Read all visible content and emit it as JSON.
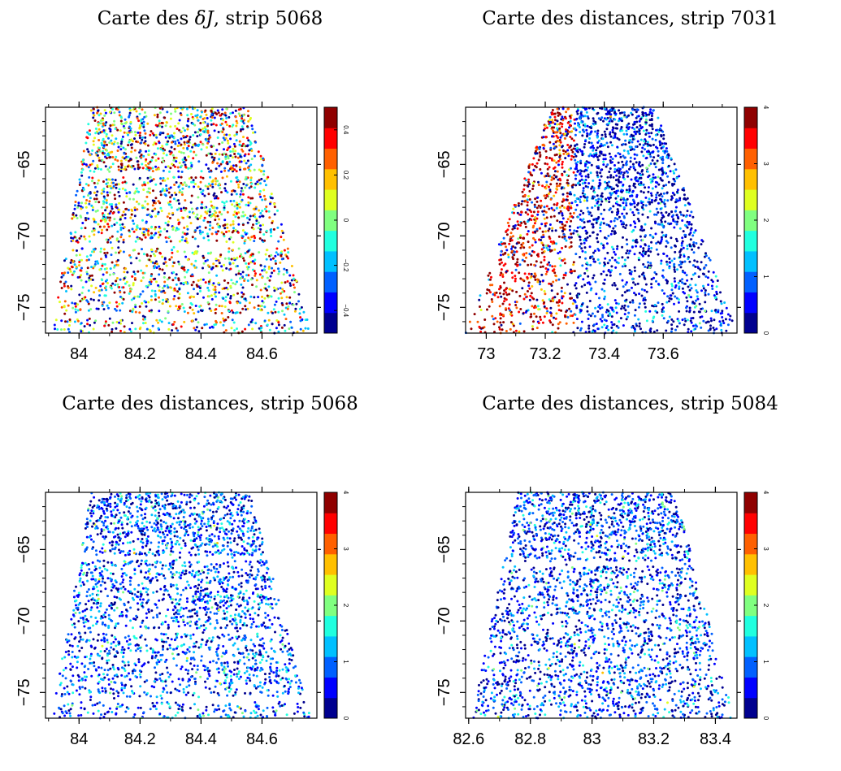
{
  "colormap": [
    "#00008f",
    "#0000ff",
    "#0060ff",
    "#00c0ff",
    "#20ffdf",
    "#80ff80",
    "#dfff20",
    "#ffc000",
    "#ff6000",
    "#ff0000",
    "#8f0000"
  ],
  "chart_data": [
    {
      "type": "scatter",
      "title_prefix": "Carte des ",
      "title_math": "δJ",
      "title_suffix": ", strip 5068",
      "xlabel": "",
      "ylabel": "",
      "xlim": [
        83.89,
        84.78
      ],
      "ylim": [
        -76.8,
        -61
      ],
      "xticks": [
        84,
        84.2,
        84.4,
        84.6
      ],
      "xtick_labels": [
        "84",
        "84.2",
        "84.4",
        "84.6"
      ],
      "yticks": [
        -65,
        -70,
        -75
      ],
      "ytick_labels": [
        "−65",
        "−70",
        "−75"
      ],
      "colorbar": {
        "min": -0.5,
        "max": 0.5,
        "ticks": [
          -0.4,
          -0.2,
          0,
          0.2,
          0.4
        ],
        "tick_labels": [
          "−0.4",
          "−0.2",
          "0",
          "0.2",
          "0.4"
        ]
      },
      "footprint": {
        "top": [
          84.04,
          84.56
        ],
        "bottom": [
          83.91,
          84.76
        ]
      },
      "value_dist": {
        "mean": 0.0,
        "spread": 0.35
      },
      "gaps_y": [
        -65.7,
        -70.7,
        -75.6
      ],
      "points_approx": 2600
    },
    {
      "type": "scatter",
      "title_prefix": "Carte des distances, strip 7031",
      "title_math": "",
      "title_suffix": "",
      "xlabel": "",
      "ylabel": "",
      "xlim": [
        72.93,
        73.85
      ],
      "ylim": [
        -76.8,
        -61
      ],
      "xticks": [
        73,
        73.2,
        73.4,
        73.6
      ],
      "xtick_labels": [
        "73",
        "73.2",
        "73.4",
        "73.6"
      ],
      "yticks": [
        -65,
        -70,
        -75
      ],
      "ytick_labels": [
        "−65",
        "−70",
        "−75"
      ],
      "colorbar": {
        "min": 0,
        "max": 4,
        "ticks": [
          0,
          1,
          2,
          3,
          4
        ],
        "tick_labels": [
          "0",
          "1",
          "2",
          "3",
          "4"
        ]
      },
      "footprint": {
        "top": [
          73.22,
          73.57
        ],
        "bottom": [
          72.93,
          73.85
        ]
      },
      "value_dist": {
        "mean": 0.5,
        "spread": 0.6,
        "hot_below_x": 73.3,
        "hot_mean": 3.5
      },
      "gaps_y": [],
      "points_approx": 2600
    },
    {
      "type": "scatter",
      "title_prefix": "Carte des distances, strip 5068",
      "title_math": "",
      "title_suffix": "",
      "xlabel": "",
      "ylabel": "",
      "xlim": [
        83.89,
        84.78
      ],
      "ylim": [
        -76.8,
        -61
      ],
      "xticks": [
        84,
        84.2,
        84.4,
        84.6
      ],
      "xtick_labels": [
        "84",
        "84.2",
        "84.4",
        "84.6"
      ],
      "yticks": [
        -65,
        -70,
        -75
      ],
      "ytick_labels": [
        "−65",
        "−70",
        "−75"
      ],
      "colorbar": {
        "min": 0,
        "max": 4,
        "ticks": [
          0,
          1,
          2,
          3,
          4
        ],
        "tick_labels": [
          "0",
          "1",
          "2",
          "3",
          "4"
        ]
      },
      "footprint": {
        "top": [
          84.04,
          84.56
        ],
        "bottom": [
          83.91,
          84.76
        ]
      },
      "value_dist": {
        "mean": 0.8,
        "spread": 0.55
      },
      "gaps_y": [
        -65.6,
        -70.7,
        -75.5
      ],
      "points_approx": 2600
    },
    {
      "type": "scatter",
      "title_prefix": "Carte des distances, strip 5084",
      "title_math": "",
      "title_suffix": "",
      "xlabel": "",
      "ylabel": "",
      "xlim": [
        82.59,
        83.47
      ],
      "ylim": [
        -76.8,
        -61
      ],
      "xticks": [
        82.6,
        82.8,
        83,
        83.2,
        83.4
      ],
      "xtick_labels": [
        "82.6",
        "82.8",
        "83",
        "83.2",
        "83.4"
      ],
      "yticks": [
        -65,
        -70,
        -75
      ],
      "ytick_labels": [
        "−65",
        "−70",
        "−75"
      ],
      "colorbar": {
        "min": 0,
        "max": 4,
        "ticks": [
          0,
          1,
          2,
          3,
          4
        ],
        "tick_labels": [
          "0",
          "1",
          "2",
          "3",
          "4"
        ]
      },
      "footprint": {
        "top": [
          82.76,
          83.27
        ],
        "bottom": [
          82.61,
          83.46
        ]
      },
      "value_dist": {
        "mean": 0.7,
        "spread": 0.55
      },
      "gaps_y": [
        -66.0
      ],
      "points_approx": 2600
    }
  ]
}
